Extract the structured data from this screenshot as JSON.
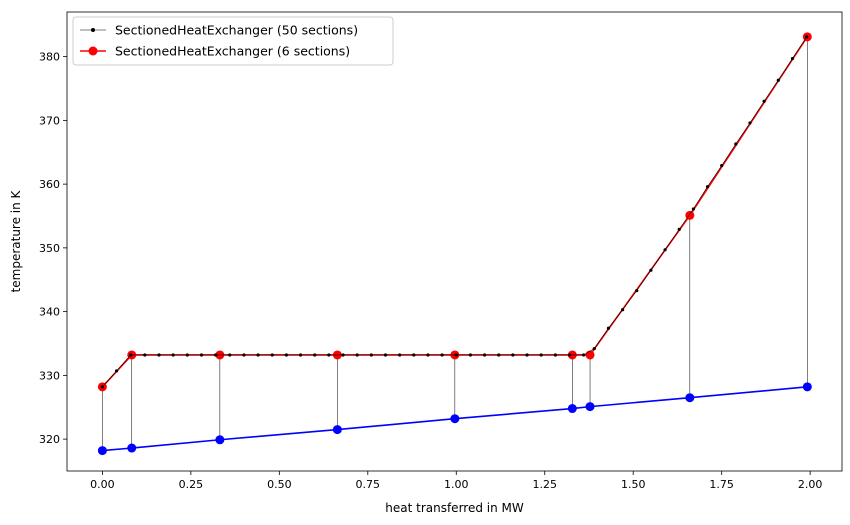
{
  "chart_data": {
    "type": "line",
    "title": "",
    "xlabel": "heat transferred in MW",
    "ylabel": "temperature in K",
    "xlim": [
      -0.1,
      2.09
    ],
    "ylim": [
      315,
      387
    ],
    "xticks": [
      0.0,
      0.25,
      0.5,
      0.75,
      1.0,
      1.25,
      1.5,
      1.75,
      2.0
    ],
    "xtick_labels": [
      "0.00",
      "0.25",
      "0.50",
      "0.75",
      "1.00",
      "1.25",
      "1.50",
      "1.75",
      "2.00"
    ],
    "yticks": [
      320,
      330,
      340,
      350,
      360,
      370,
      380
    ],
    "ytick_labels": [
      "320",
      "330",
      "340",
      "350",
      "360",
      "370",
      "380"
    ],
    "grid": false,
    "legend_position": "top-left",
    "series": [
      {
        "name": "SectionedHeatExchanger (50 sections)",
        "color": "#000000",
        "marker": "small-dot",
        "x": [
          0.0,
          0.04,
          0.08,
          0.12,
          0.16,
          0.2,
          0.24,
          0.28,
          0.32,
          0.36,
          0.4,
          0.44,
          0.48,
          0.52,
          0.56,
          0.6,
          0.64,
          0.68,
          0.72,
          0.76,
          0.8,
          0.84,
          0.88,
          0.92,
          0.96,
          1.0,
          1.04,
          1.08,
          1.12,
          1.16,
          1.2,
          1.24,
          1.28,
          1.32,
          1.36,
          1.39,
          1.43,
          1.47,
          1.51,
          1.55,
          1.59,
          1.63,
          1.67,
          1.71,
          1.75,
          1.79,
          1.83,
          1.87,
          1.91,
          1.95,
          1.99
        ],
        "y": [
          328.2,
          330.7,
          333.2,
          333.2,
          333.2,
          333.2,
          333.2,
          333.2,
          333.2,
          333.2,
          333.2,
          333.2,
          333.2,
          333.2,
          333.2,
          333.2,
          333.2,
          333.2,
          333.2,
          333.2,
          333.2,
          333.2,
          333.2,
          333.2,
          333.2,
          333.2,
          333.2,
          333.2,
          333.2,
          333.2,
          333.2,
          333.2,
          333.2,
          333.2,
          333.2,
          334.2,
          337.4,
          340.3,
          343.3,
          346.5,
          349.7,
          352.9,
          356.1,
          359.6,
          362.9,
          366.3,
          369.6,
          373.0,
          376.3,
          379.7,
          383.1
        ]
      },
      {
        "name": "SectionedHeatExchanger (6 sections)",
        "color": "#ff0000",
        "marker": "large-dot",
        "x": [
          0.0,
          0.083,
          0.332,
          0.664,
          0.996,
          1.328,
          1.378,
          1.66,
          1.992
        ],
        "y": [
          328.2,
          333.2,
          333.2,
          333.2,
          333.2,
          333.2,
          333.2,
          355.1,
          383.1
        ]
      },
      {
        "name": "",
        "color": "#0000ff",
        "marker": "large-dot",
        "x": [
          0.0,
          0.083,
          0.332,
          0.664,
          0.996,
          1.328,
          1.378,
          1.66,
          1.992
        ],
        "y": [
          318.2,
          318.6,
          319.9,
          321.5,
          323.2,
          324.8,
          325.1,
          326.5,
          328.2
        ]
      }
    ]
  }
}
